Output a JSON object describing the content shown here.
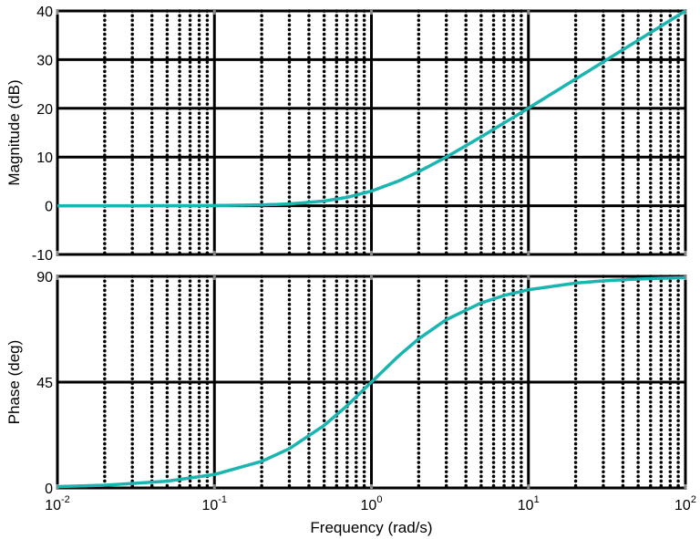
{
  "chart_data": [
    {
      "type": "line",
      "panel": "magnitude",
      "ylabel": "Magnitude (dB)",
      "xscale": "log",
      "xlim": [
        0.01,
        100
      ],
      "ylim": [
        -10,
        40
      ],
      "yticks": [
        -10,
        0,
        10,
        20,
        30,
        40
      ],
      "grid": true,
      "series": [
        {
          "color": "#1ab5b0",
          "x": [
            0.01,
            0.02,
            0.05,
            0.1,
            0.2,
            0.3,
            0.5,
            0.7,
            1,
            1.5,
            2,
            3,
            5,
            7,
            10,
            20,
            30,
            50,
            70,
            100
          ],
          "y": [
            0,
            0,
            0.01,
            0.04,
            0.17,
            0.37,
            0.97,
            1.73,
            3.01,
            5.12,
            6.99,
            10.0,
            14.15,
            17.0,
            20.04,
            26.03,
            29.54,
            33.98,
            36.9,
            40.0
          ]
        }
      ]
    },
    {
      "type": "line",
      "panel": "phase",
      "ylabel": "Phase (deg)",
      "xlabel": "Frequency  (rad/s)",
      "xscale": "log",
      "xlim": [
        0.01,
        100
      ],
      "ylim": [
        0,
        90
      ],
      "yticks": [
        0,
        45,
        90
      ],
      "grid": true,
      "xticks": [
        {
          "base": "10",
          "exp": "-2"
        },
        {
          "base": "10",
          "exp": "-1"
        },
        {
          "base": "10",
          "exp": "0"
        },
        {
          "base": "10",
          "exp": "1"
        },
        {
          "base": "10",
          "exp": "2"
        }
      ],
      "series": [
        {
          "color": "#1ab5b0",
          "x": [
            0.01,
            0.02,
            0.05,
            0.1,
            0.2,
            0.3,
            0.5,
            0.7,
            1,
            1.5,
            2,
            3,
            5,
            7,
            10,
            20,
            30,
            50,
            70,
            100
          ],
          "y": [
            0.57,
            1.15,
            2.86,
            5.71,
            11.31,
            16.7,
            26.57,
            34.99,
            45.0,
            56.31,
            63.43,
            71.57,
            78.69,
            81.87,
            84.29,
            87.14,
            88.09,
            88.85,
            89.18,
            89.43
          ]
        }
      ]
    }
  ]
}
